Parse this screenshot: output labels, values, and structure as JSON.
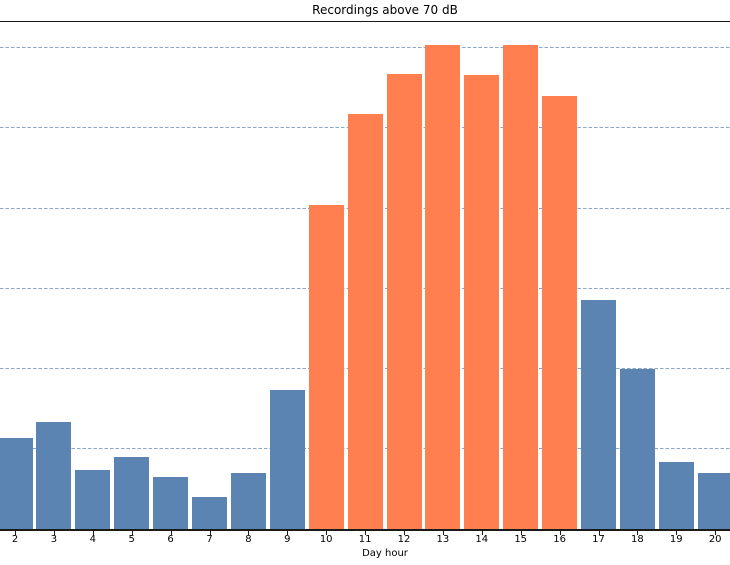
{
  "chart_data": {
    "type": "bar",
    "title": "Recordings above 70 dB",
    "xlabel": "Day hour",
    "ylabel": "",
    "categories": [
      "2",
      "3",
      "4",
      "5",
      "6",
      "7",
      "8",
      "9",
      "10",
      "11",
      "12",
      "13",
      "14",
      "15",
      "16",
      "17",
      "18",
      "19",
      "20"
    ],
    "values": [
      57,
      67,
      37,
      45,
      33,
      20,
      35,
      87,
      202,
      259,
      284,
      302,
      283,
      302,
      270,
      143,
      100,
      42,
      35
    ],
    "highlighted_categories": [
      "10",
      "11",
      "12",
      "13",
      "14",
      "15",
      "16"
    ],
    "ylim": [
      0,
      317
    ],
    "gridlines": [
      50,
      100,
      150,
      200,
      250,
      300
    ],
    "y_tick_labels_visible": false,
    "grid_style": "horizontal dashed",
    "legend": "none"
  },
  "colors": {
    "bar_default": "#5b84b2",
    "bar_highlight": "#ff7f50",
    "gridline": "#8ba7c9",
    "spine": "#1a1a1a",
    "background": "#ffffff",
    "text": "#000000"
  }
}
